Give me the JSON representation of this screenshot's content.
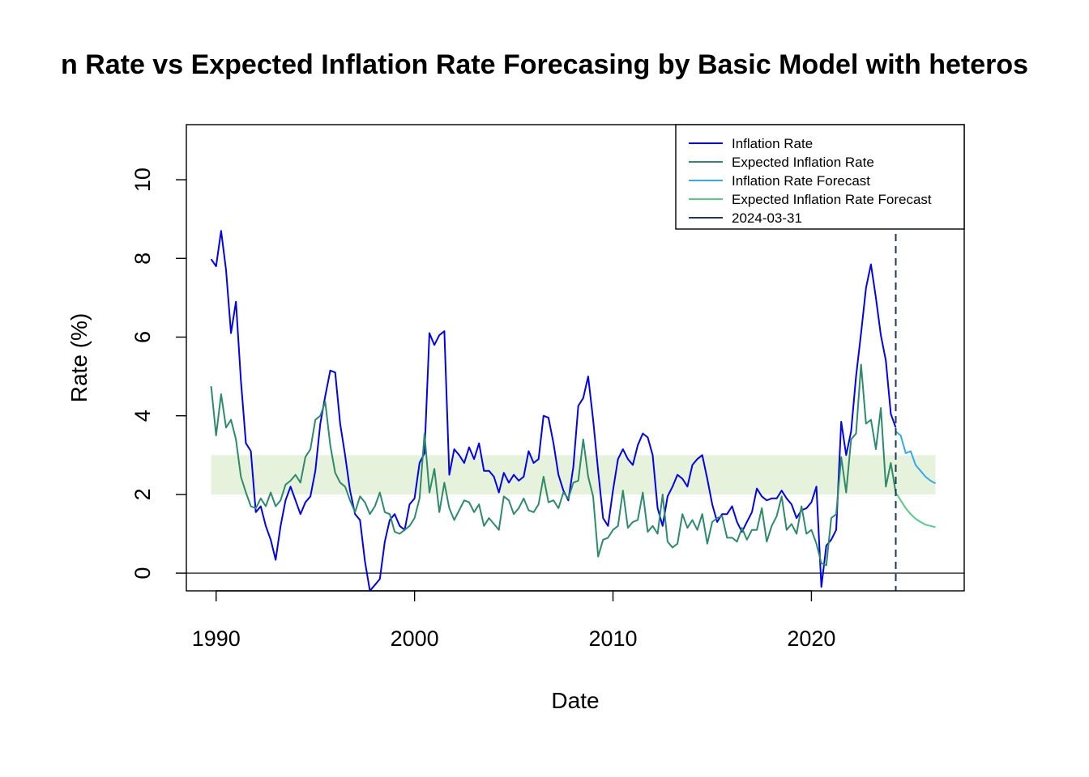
{
  "chart_data": {
    "type": "line",
    "title": "n Rate vs Expected Inflation Rate Forecasing by Basic Model with heteros",
    "xlabel": "Date",
    "ylabel": "Rate (%)",
    "xlim": [
      1988.5,
      2027.7
    ],
    "ylim": [
      -0.45,
      11.4
    ],
    "x_ticks": [
      1990,
      2000,
      2010,
      2020
    ],
    "x_tick_labels": [
      "1990",
      "2000",
      "2010",
      "2020"
    ],
    "y_ticks": [
      0,
      2,
      4,
      6,
      8,
      10
    ],
    "y_tick_labels": [
      "0",
      "2",
      "4",
      "6",
      "8",
      "10"
    ],
    "grid": false,
    "legend_position": "top-right",
    "target_band": {
      "y_from": 2,
      "y_to": 3,
      "x_from": 1989.75,
      "x_to": 2026.25,
      "color": "#e6f2dc"
    },
    "hline": {
      "y": 0,
      "color": "#2f3e5a"
    },
    "vline": {
      "x": 2024.25,
      "label": "2024-03-31",
      "color": "#1b3a5c",
      "dashed": true
    },
    "series": [
      {
        "name": "Inflation Rate",
        "color": "#0000ee",
        "x_start": 1989.75,
        "x_step": 0.25,
        "values": [
          7.98,
          7.8,
          8.7,
          7.7,
          6.1,
          6.9,
          4.9,
          3.3,
          3.1,
          1.55,
          1.7,
          1.2,
          0.85,
          0.34,
          1.2,
          1.85,
          2.2,
          1.85,
          1.5,
          1.8,
          1.95,
          2.6,
          3.8,
          4.5,
          5.15,
          5.1,
          3.8,
          3.0,
          2.1,
          1.5,
          1.35,
          0.3,
          -0.45,
          -0.3,
          -0.15,
          0.8,
          1.35,
          1.5,
          1.2,
          1.1,
          1.75,
          1.9,
          2.8,
          3.05,
          6.1,
          5.8,
          6.05,
          6.15,
          2.5,
          3.15,
          3.0,
          2.8,
          3.2,
          2.9,
          3.3,
          2.6,
          2.6,
          2.45,
          2.05,
          2.55,
          2.3,
          2.5,
          2.35,
          2.45,
          3.1,
          2.8,
          2.9,
          4.0,
          3.95,
          3.3,
          2.5,
          2.1,
          1.85,
          2.7,
          4.25,
          4.45,
          5.0,
          3.9,
          2.6,
          1.4,
          1.2,
          2.1,
          2.9,
          3.15,
          2.9,
          2.75,
          3.25,
          3.55,
          3.45,
          3.0,
          1.65,
          1.2,
          1.95,
          2.2,
          2.5,
          2.4,
          2.2,
          2.75,
          2.9,
          3.0,
          2.4,
          1.75,
          1.3,
          1.5,
          1.5,
          1.7,
          1.3,
          1.05,
          1.3,
          1.55,
          2.15,
          1.95,
          1.85,
          1.9,
          1.9,
          2.1,
          1.9,
          1.75,
          1.4,
          1.6,
          1.65,
          1.8,
          2.2,
          -0.35,
          0.7,
          0.85,
          1.1,
          3.85,
          3.0,
          3.6,
          5.0,
          6.1,
          7.25,
          7.85,
          7.0,
          6.05,
          5.4,
          4.05,
          3.7
        ]
      },
      {
        "name": "Expected Inflation Rate",
        "color": "#2e8b6a",
        "x_start": 1989.75,
        "x_step": 0.25,
        "values": [
          4.75,
          3.5,
          4.55,
          3.7,
          3.9,
          3.4,
          2.45,
          2.05,
          1.7,
          1.65,
          1.9,
          1.7,
          2.05,
          1.7,
          1.85,
          2.25,
          2.35,
          2.5,
          2.3,
          2.95,
          3.15,
          3.9,
          4.0,
          4.35,
          3.25,
          2.55,
          2.3,
          2.2,
          1.85,
          1.55,
          1.95,
          1.8,
          1.5,
          1.7,
          2.05,
          1.55,
          1.5,
          1.05,
          1.0,
          1.1,
          1.2,
          1.4,
          1.9,
          3.55,
          2.05,
          2.65,
          1.55,
          2.3,
          1.65,
          1.35,
          1.6,
          1.85,
          1.8,
          1.55,
          1.75,
          1.2,
          1.4,
          1.25,
          1.1,
          1.95,
          1.85,
          1.5,
          1.65,
          1.9,
          1.6,
          1.55,
          1.75,
          2.45,
          1.8,
          1.85,
          1.65,
          2.05,
          1.9,
          2.3,
          2.35,
          3.4,
          2.45,
          1.95,
          0.42,
          0.85,
          0.9,
          1.1,
          1.2,
          2.1,
          1.15,
          1.3,
          1.35,
          2.05,
          1.05,
          1.2,
          1.0,
          2.0,
          0.8,
          0.65,
          0.75,
          1.5,
          1.15,
          1.35,
          1.1,
          1.5,
          0.75,
          1.3,
          1.4,
          1.45,
          0.9,
          0.9,
          0.8,
          1.15,
          0.85,
          1.1,
          1.1,
          1.65,
          0.8,
          1.2,
          1.45,
          1.95,
          1.1,
          1.25,
          1.0,
          1.7,
          1.0,
          1.1,
          0.75,
          0.25,
          0.2,
          1.4,
          1.5,
          2.95,
          2.05,
          3.4,
          3.55,
          5.3,
          3.8,
          3.9,
          3.15,
          4.2,
          2.2,
          2.8,
          2.05
        ]
      },
      {
        "name": "Inflation Rate Forecast",
        "color": "#33aaee",
        "x_start": 2024.25,
        "x_step": 0.25,
        "values": [
          3.6,
          3.5,
          3.05,
          3.1,
          2.75,
          2.6,
          2.45,
          2.35,
          2.28
        ]
      },
      {
        "name": "Expected Inflation Rate Forecast",
        "color": "#55cc88",
        "x_start": 2024.25,
        "x_step": 0.25,
        "values": [
          2.05,
          1.85,
          1.65,
          1.5,
          1.38,
          1.3,
          1.23,
          1.2,
          1.17
        ]
      }
    ],
    "legend": [
      {
        "label": "Inflation Rate",
        "color": "#0000ee"
      },
      {
        "label": "Expected Inflation Rate",
        "color": "#2e8b6a"
      },
      {
        "label": "Inflation Rate Forecast",
        "color": "#33aaee"
      },
      {
        "label": "Expected Inflation Rate Forecast",
        "color": "#55cc88"
      },
      {
        "label": "2024-03-31",
        "color": "#1b3a5c"
      }
    ]
  }
}
